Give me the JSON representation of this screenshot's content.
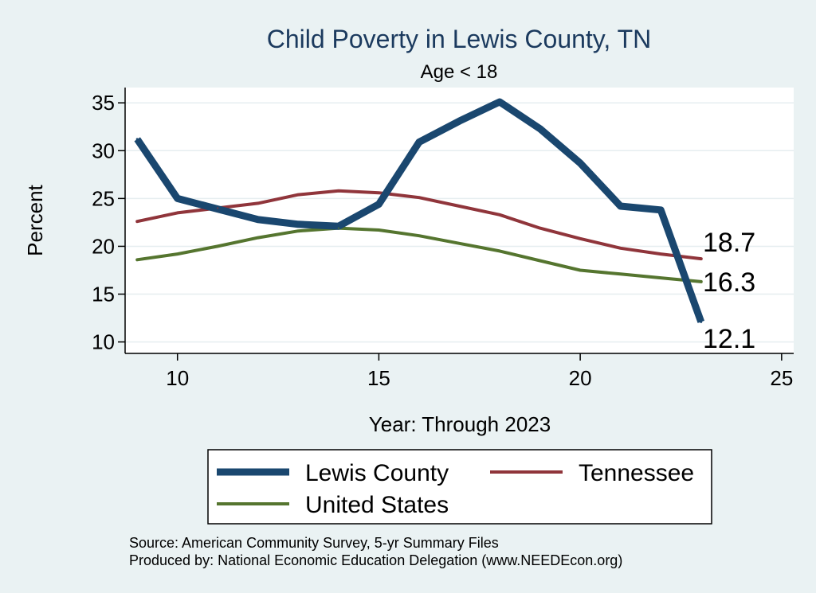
{
  "chart_data": {
    "type": "line",
    "title": "Child Poverty in Lewis County, TN",
    "subtitle": "Age < 18",
    "xlabel": "Year: Through 2023",
    "ylabel": "Percent",
    "xlim": [
      8.7,
      25.3
    ],
    "ylim": [
      8.8,
      36.6
    ],
    "xticks": [
      10,
      15,
      20,
      25
    ],
    "yticks": [
      10,
      15,
      20,
      25,
      30,
      35
    ],
    "grid": true,
    "legend_position": "bottom",
    "series": [
      {
        "name": "Lewis County",
        "color": "#1a476f",
        "x": [
          9,
          10,
          11,
          12,
          13,
          14,
          15,
          16,
          17,
          18,
          19,
          20,
          21,
          22,
          23
        ],
        "values": [
          31.2,
          25.0,
          23.9,
          22.8,
          22.3,
          22.1,
          24.4,
          30.9,
          33.1,
          35.1,
          32.3,
          28.7,
          24.2,
          23.8,
          12.1
        ],
        "end_label": "12.1"
      },
      {
        "name": "Tennessee",
        "color": "#90353b",
        "x": [
          9,
          10,
          11,
          12,
          13,
          14,
          15,
          16,
          17,
          18,
          19,
          20,
          21,
          22,
          23
        ],
        "values": [
          22.6,
          23.5,
          24.0,
          24.5,
          25.4,
          25.8,
          25.6,
          25.1,
          24.2,
          23.3,
          21.9,
          20.8,
          19.8,
          19.2,
          18.7
        ],
        "end_label": "18.7"
      },
      {
        "name": "United States",
        "color": "#55752f",
        "x": [
          9,
          10,
          11,
          12,
          13,
          14,
          15,
          16,
          17,
          18,
          19,
          20,
          21,
          22,
          23
        ],
        "values": [
          18.6,
          19.2,
          20.0,
          20.9,
          21.6,
          21.9,
          21.7,
          21.1,
          20.3,
          19.5,
          18.5,
          17.5,
          17.1,
          16.7,
          16.3
        ],
        "end_label": "16.3"
      }
    ]
  },
  "source": {
    "line1": "Source: American Community Survey, 5-yr Summary Files",
    "line2": "Produced by: National Economic Education Delegation (www.NEEDEcon.org)"
  }
}
